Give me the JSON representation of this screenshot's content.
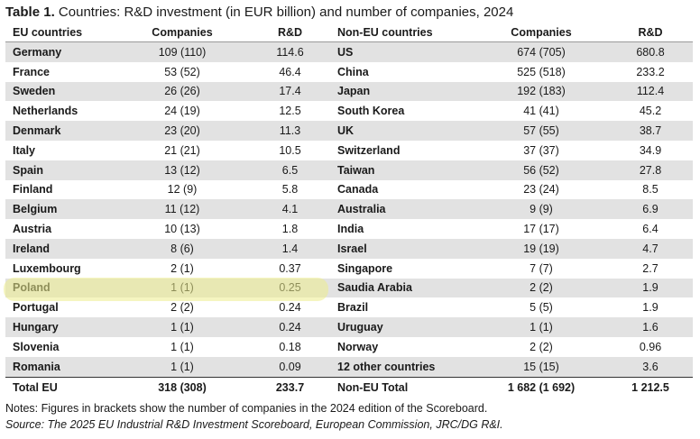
{
  "title": {
    "lead": "Table 1.",
    "text": "Countries: R&D investment (in EUR billion) and number of companies, 2024"
  },
  "headers": {
    "eu": "EU countries",
    "eu_companies": "Companies",
    "eu_rd": "R&D",
    "non_eu": "Non-EU countries",
    "non_eu_companies": "Companies",
    "non_eu_rd": "R&D"
  },
  "rows": [
    {
      "eu": "Germany",
      "eu_comp": "109 (110)",
      "eu_rd": "114.6",
      "neu": "US",
      "neu_comp": "674 (705)",
      "neu_rd": "680.8"
    },
    {
      "eu": "France",
      "eu_comp": "53 (52)",
      "eu_rd": "46.4",
      "neu": "China",
      "neu_comp": "525 (518)",
      "neu_rd": "233.2"
    },
    {
      "eu": "Sweden",
      "eu_comp": "26 (26)",
      "eu_rd": "17.4",
      "neu": "Japan",
      "neu_comp": "192 (183)",
      "neu_rd": "112.4"
    },
    {
      "eu": "Netherlands",
      "eu_comp": "24 (19)",
      "eu_rd": "12.5",
      "neu": "South Korea",
      "neu_comp": "41 (41)",
      "neu_rd": "45.2"
    },
    {
      "eu": "Denmark",
      "eu_comp": "23 (20)",
      "eu_rd": "11.3",
      "neu": "UK",
      "neu_comp": "57 (55)",
      "neu_rd": "38.7"
    },
    {
      "eu": "Italy",
      "eu_comp": "21 (21)",
      "eu_rd": "10.5",
      "neu": "Switzerland",
      "neu_comp": "37 (37)",
      "neu_rd": "34.9"
    },
    {
      "eu": "Spain",
      "eu_comp": "13 (12)",
      "eu_rd": "6.5",
      "neu": "Taiwan",
      "neu_comp": "56 (52)",
      "neu_rd": "27.8"
    },
    {
      "eu": "Finland",
      "eu_comp": "12 (9)",
      "eu_rd": "5.8",
      "neu": "Canada",
      "neu_comp": "23 (24)",
      "neu_rd": "8.5"
    },
    {
      "eu": "Belgium",
      "eu_comp": "11 (12)",
      "eu_rd": "4.1",
      "neu": "Australia",
      "neu_comp": "9 (9)",
      "neu_rd": "6.9"
    },
    {
      "eu": "Austria",
      "eu_comp": "10 (13)",
      "eu_rd": "1.8",
      "neu": "India",
      "neu_comp": "17 (17)",
      "neu_rd": "6.4"
    },
    {
      "eu": "Ireland",
      "eu_comp": "8 (6)",
      "eu_rd": "1.4",
      "neu": "Israel",
      "neu_comp": "19 (19)",
      "neu_rd": "4.7"
    },
    {
      "eu": "Luxembourg",
      "eu_comp": "2 (1)",
      "eu_rd": "0.37",
      "neu": "Singapore",
      "neu_comp": "7 (7)",
      "neu_rd": "2.7"
    },
    {
      "eu": "Poland",
      "eu_comp": "1 (1)",
      "eu_rd": "0.25",
      "neu": "Saudia Arabia",
      "neu_comp": "2 (2)",
      "neu_rd": "1.9"
    },
    {
      "eu": "Portugal",
      "eu_comp": "2 (2)",
      "eu_rd": "0.24",
      "neu": "Brazil",
      "neu_comp": "5 (5)",
      "neu_rd": "1.9"
    },
    {
      "eu": "Hungary",
      "eu_comp": "1 (1)",
      "eu_rd": "0.24",
      "neu": "Uruguay",
      "neu_comp": "1 (1)",
      "neu_rd": "1.6"
    },
    {
      "eu": "Slovenia",
      "eu_comp": "1 (1)",
      "eu_rd": "0.18",
      "neu": "Norway",
      "neu_comp": "2 (2)",
      "neu_rd": "0.96"
    },
    {
      "eu": "Romania",
      "eu_comp": "1 (1)",
      "eu_rd": "0.09",
      "neu": "12 other countries",
      "neu_comp": "15 (15)",
      "neu_rd": "3.6"
    }
  ],
  "totals": {
    "eu_label": "Total EU",
    "eu_companies": "318 (308)",
    "eu_rd": "233.7",
    "non_eu_label": "Non-EU Total",
    "non_eu_companies": "1 682 (1 692)",
    "non_eu_rd": "1 212.5"
  },
  "notes": "Notes: Figures in brackets show the number of companies in the 2024 edition of the Scoreboard.",
  "source": "Source: The 2025 EU Industrial R&D Investment Scoreboard, European Commission, JRC/DG R&I.",
  "highlight_color": "#ECEC8C"
}
